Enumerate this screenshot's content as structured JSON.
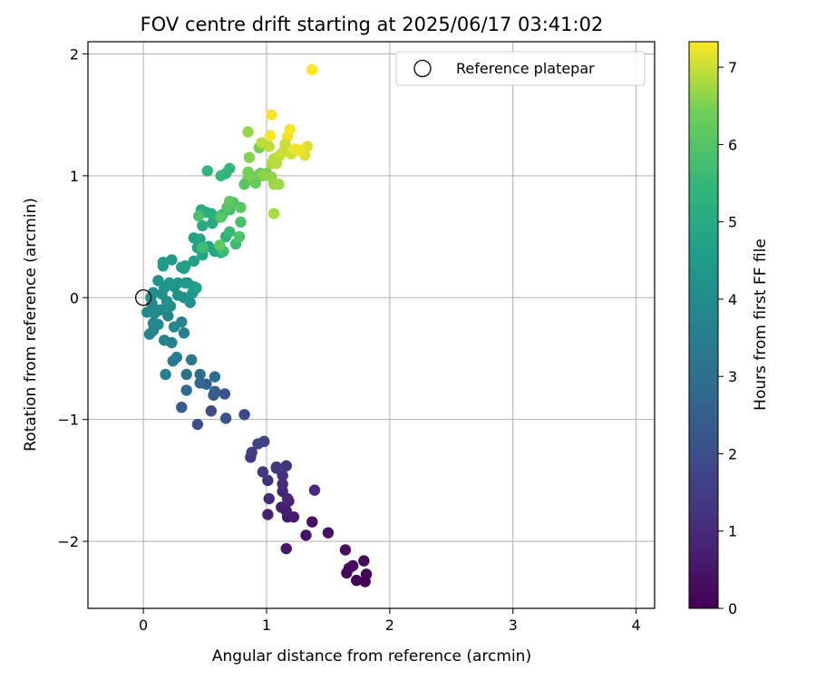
{
  "chart_data": {
    "type": "scatter",
    "title": "FOV centre drift starting at 2025/06/17 03:41:02",
    "xlabel": "Angular distance from reference (arcmin)",
    "ylabel": "Rotation from reference (arcmin)",
    "xlim": [
      -0.45,
      4.15
    ],
    "ylim": [
      -2.55,
      2.1
    ],
    "xticks": [
      0,
      1,
      2,
      3,
      4
    ],
    "yticks": [
      -2,
      -1,
      0,
      1,
      2
    ],
    "xtick_labels": [
      "0",
      "1",
      "2",
      "3",
      "4"
    ],
    "ytick_labels": [
      "−2",
      "−1",
      "0",
      "1",
      "2"
    ],
    "grid": true,
    "colormap": "viridis",
    "colorbar": {
      "label": "Hours from first FF file",
      "range": [
        0,
        7.33
      ],
      "ticks": [
        0,
        1,
        2,
        3,
        4,
        5,
        6,
        7
      ],
      "tick_labels": [
        "0",
        "1",
        "2",
        "3",
        "4",
        "5",
        "6",
        "7"
      ]
    },
    "legend": {
      "position": "top-right",
      "entries": [
        {
          "label": "Reference platepar",
          "marker": "open-circle"
        }
      ]
    },
    "reference_point": {
      "x": 0,
      "y": 0
    },
    "points": [
      [
        1.8,
        -2.33,
        0.02
      ],
      [
        1.73,
        -2.32,
        0.06
      ],
      [
        1.81,
        -2.27,
        0.1
      ],
      [
        1.65,
        -2.26,
        0.14
      ],
      [
        1.67,
        -2.22,
        0.18
      ],
      [
        1.7,
        -2.2,
        0.22
      ],
      [
        1.79,
        -2.16,
        0.26
      ],
      [
        1.64,
        -2.07,
        0.3
      ],
      [
        1.5,
        -1.93,
        0.35
      ],
      [
        1.37,
        -1.84,
        0.4
      ],
      [
        1.32,
        -1.95,
        0.45
      ],
      [
        1.16,
        -2.06,
        0.5
      ],
      [
        1.17,
        -1.8,
        0.55
      ],
      [
        1.22,
        -1.8,
        0.6
      ],
      [
        1.16,
        -1.75,
        0.65
      ],
      [
        1.12,
        -1.72,
        0.7
      ],
      [
        1.01,
        -1.78,
        0.75
      ],
      [
        1.18,
        -1.67,
        0.8
      ],
      [
        1.13,
        -1.59,
        0.85
      ],
      [
        1.17,
        -1.65,
        0.9
      ],
      [
        1.39,
        -1.58,
        0.95
      ],
      [
        1.02,
        -1.65,
        1.0
      ],
      [
        1.13,
        -1.53,
        1.05
      ],
      [
        1.13,
        -1.46,
        1.1
      ],
      [
        1.01,
        -1.5,
        1.15
      ],
      [
        1.08,
        -1.4,
        1.2
      ],
      [
        1.16,
        -1.38,
        1.25
      ],
      [
        0.97,
        -1.43,
        1.3
      ],
      [
        1.08,
        -1.39,
        1.35
      ],
      [
        0.87,
        -1.31,
        1.4
      ],
      [
        0.88,
        -1.27,
        1.5
      ],
      [
        0.93,
        -1.2,
        1.6
      ],
      [
        0.98,
        -1.18,
        1.7
      ],
      [
        0.82,
        -0.96,
        1.8
      ],
      [
        0.55,
        -0.93,
        1.9
      ],
      [
        0.44,
        -1.04,
        2.0
      ],
      [
        0.67,
        -0.99,
        2.1
      ],
      [
        0.66,
        -0.79,
        2.2
      ],
      [
        0.57,
        -0.8,
        2.3
      ],
      [
        0.31,
        -0.9,
        2.4
      ],
      [
        0.58,
        -0.77,
        2.5
      ],
      [
        0.51,
        -0.71,
        2.6
      ],
      [
        0.46,
        -0.7,
        2.7
      ],
      [
        0.35,
        -0.76,
        2.8
      ],
      [
        0.46,
        -0.63,
        2.9
      ],
      [
        0.58,
        -0.65,
        3.0
      ],
      [
        0.35,
        -0.63,
        3.1
      ],
      [
        0.39,
        -0.51,
        3.2
      ],
      [
        0.24,
        -0.52,
        3.3
      ],
      [
        0.27,
        -0.49,
        3.4
      ],
      [
        0.18,
        -0.63,
        3.5
      ],
      [
        0.33,
        -0.29,
        3.6
      ],
      [
        0.23,
        -0.37,
        3.62
      ],
      [
        0.17,
        -0.35,
        3.65
      ],
      [
        0.31,
        -0.2,
        3.68
      ],
      [
        0.08,
        -0.27,
        3.71
      ],
      [
        0.05,
        -0.3,
        3.74
      ],
      [
        0.08,
        -0.21,
        3.77
      ],
      [
        0.12,
        -0.22,
        3.8
      ],
      [
        0.2,
        -0.15,
        3.82
      ],
      [
        0.25,
        -0.24,
        3.85
      ],
      [
        0.03,
        -0.12,
        3.88
      ],
      [
        0.07,
        -0.05,
        3.91
      ],
      [
        0.09,
        -0.13,
        3.94
      ],
      [
        0.14,
        -0.1,
        3.96
      ],
      [
        0.06,
        0.0,
        3.99
      ],
      [
        0.15,
        0.03,
        4.02
      ],
      [
        0.22,
        -0.07,
        4.05
      ],
      [
        0.08,
        0.04,
        4.08
      ],
      [
        0.19,
        -0.03,
        4.11
      ],
      [
        0.28,
        0.02,
        4.14
      ],
      [
        0.33,
        0.0,
        4.17
      ],
      [
        0.38,
        -0.04,
        4.2
      ],
      [
        0.25,
        0.09,
        4.22
      ],
      [
        0.17,
        0.08,
        4.25
      ],
      [
        0.12,
        0.14,
        4.28
      ],
      [
        0.21,
        0.12,
        4.31
      ],
      [
        0.28,
        0.12,
        4.34
      ],
      [
        0.36,
        0.12,
        4.37
      ],
      [
        0.4,
        0.04,
        4.4
      ],
      [
        0.41,
        0.09,
        4.43
      ],
      [
        0.34,
        0.12,
        4.46
      ],
      [
        0.16,
        0.26,
        4.49
      ],
      [
        0.16,
        0.29,
        4.52
      ],
      [
        0.23,
        0.31,
        4.55
      ],
      [
        0.31,
        0.25,
        4.58
      ],
      [
        0.33,
        0.24,
        4.61
      ],
      [
        0.43,
        0.08,
        4.64
      ],
      [
        0.34,
        0.26,
        4.67
      ],
      [
        0.41,
        0.3,
        4.7
      ],
      [
        0.48,
        0.35,
        4.73
      ],
      [
        0.44,
        0.41,
        4.76
      ],
      [
        0.41,
        0.49,
        4.79
      ],
      [
        0.46,
        0.48,
        4.82
      ],
      [
        0.53,
        0.42,
        4.85
      ],
      [
        0.58,
        0.38,
        4.88
      ],
      [
        0.63,
        0.37,
        4.91
      ],
      [
        0.48,
        0.59,
        4.94
      ],
      [
        0.56,
        0.61,
        4.97
      ],
      [
        0.58,
        0.66,
        5.0
      ],
      [
        0.47,
        0.72,
        5.05
      ],
      [
        0.51,
        0.7,
        5.1
      ],
      [
        0.55,
        0.69,
        5.15
      ],
      [
        0.6,
        0.66,
        5.2
      ],
      [
        0.64,
        0.68,
        5.25
      ],
      [
        0.67,
        0.5,
        5.3
      ],
      [
        0.52,
        1.04,
        5.35
      ],
      [
        0.67,
        1.02,
        5.4
      ],
      [
        0.7,
        1.06,
        5.45
      ],
      [
        0.63,
        1.0,
        5.5
      ],
      [
        0.7,
        0.54,
        5.55
      ],
      [
        0.75,
        0.44,
        5.6
      ],
      [
        0.65,
        0.38,
        5.65
      ],
      [
        0.48,
        0.41,
        5.7
      ],
      [
        0.7,
        0.72,
        5.75
      ],
      [
        0.79,
        0.62,
        5.8
      ],
      [
        0.45,
        0.67,
        5.85
      ],
      [
        0.78,
        0.5,
        5.9
      ],
      [
        0.73,
        0.78,
        5.95
      ],
      [
        0.68,
        0.74,
        6.0
      ],
      [
        0.63,
        0.66,
        6.05
      ],
      [
        0.79,
        0.74,
        6.1
      ],
      [
        0.7,
        0.79,
        6.15
      ],
      [
        0.62,
        0.43,
        6.2
      ],
      [
        0.89,
        0.99,
        6.25
      ],
      [
        0.85,
        0.98,
        6.3
      ],
      [
        0.95,
        1.02,
        6.35
      ],
      [
        1.0,
        1.02,
        6.4
      ],
      [
        0.94,
        1.23,
        6.45
      ],
      [
        0.85,
        1.03,
        6.5
      ],
      [
        0.87,
        0.97,
        6.55
      ],
      [
        0.97,
        1.0,
        6.6
      ],
      [
        1.04,
        0.99,
        6.65
      ],
      [
        1.06,
        0.93,
        6.7
      ],
      [
        1.1,
        0.93,
        6.75
      ],
      [
        1.06,
        0.69,
        6.8
      ],
      [
        1.04,
        1.1,
        6.85
      ],
      [
        1.06,
        1.14,
        6.9
      ],
      [
        1.1,
        1.16,
        6.95
      ],
      [
        1.13,
        1.19,
        7.0
      ],
      [
        1.2,
        1.18,
        7.05
      ],
      [
        1.25,
        1.21,
        7.08
      ],
      [
        1.31,
        1.17,
        7.12
      ],
      [
        1.33,
        1.24,
        7.16
      ],
      [
        1.27,
        1.21,
        7.2
      ],
      [
        1.23,
        1.22,
        7.23
      ],
      [
        1.17,
        1.32,
        7.26
      ],
      [
        1.19,
        1.38,
        7.28
      ],
      [
        1.04,
        1.5,
        7.29
      ],
      [
        1.03,
        1.33,
        7.3
      ],
      [
        1.37,
        1.87,
        7.33
      ],
      [
        1.02,
        1.24,
        6.95
      ],
      [
        0.96,
        1.27,
        6.9
      ],
      [
        0.85,
        1.36,
        6.7
      ],
      [
        0.86,
        1.15,
        6.55
      ],
      [
        0.85,
        1.03,
        6.45
      ],
      [
        1.15,
        1.26,
        7.0
      ],
      [
        1.08,
        1.1,
        6.9
      ],
      [
        0.91,
        0.94,
        6.3
      ],
      [
        0.82,
        0.93,
        6.1
      ]
    ]
  }
}
